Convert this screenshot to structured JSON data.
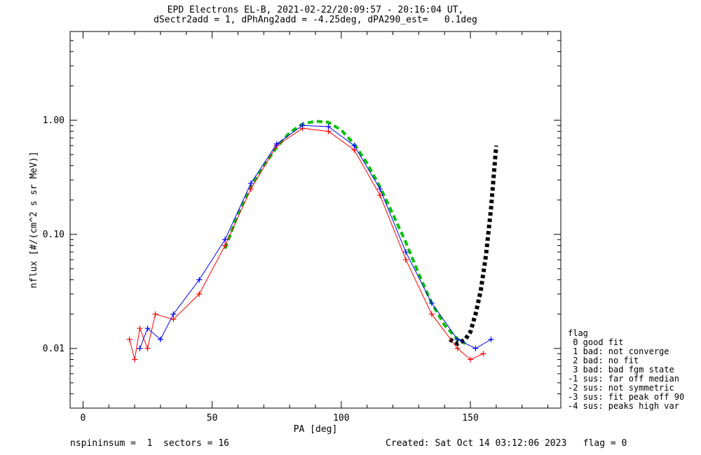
{
  "chart_data": {
    "type": "line",
    "title": "EPD Electrons EL-B, 2021-02-22/20:09:57 - 20:16:04 UT,",
    "subtitle": "dSectr2add = 1, dPhAng2add = -4.25deg, dPA290_est=   0.1deg",
    "xlabel": "PA [deg]",
    "ylabel": "nflux [#/(cm^2 s sr MeV)]",
    "xlim": [
      -5,
      185
    ],
    "ylim": [
      0.003,
      6.0
    ],
    "yscale": "log",
    "xticks": [
      0,
      50,
      100,
      150
    ],
    "xtick_labels": [
      "0",
      "50",
      "100",
      "150"
    ],
    "yticks": [
      0.01,
      0.1,
      1.0
    ],
    "ytick_labels": [
      "0.01",
      "0.10",
      "1.00"
    ],
    "series": [
      {
        "color": "#00c000",
        "style": "dashed",
        "x": [
          55,
          60,
          65,
          70,
          75,
          80,
          85,
          90,
          95,
          100,
          105,
          110,
          115,
          120,
          125,
          130,
          135,
          140,
          145,
          148
        ],
        "y": [
          0.075,
          0.15,
          0.26,
          0.4,
          0.58,
          0.78,
          0.93,
          0.98,
          0.96,
          0.82,
          0.62,
          0.42,
          0.26,
          0.15,
          0.085,
          0.045,
          0.025,
          0.016,
          0.012,
          0.011
        ]
      },
      {
        "color": "#000000",
        "style": "dotted-thick",
        "x": [
          142,
          145,
          148,
          150,
          152,
          154,
          156,
          158,
          160
        ],
        "y": [
          0.012,
          0.011,
          0.012,
          0.014,
          0.02,
          0.032,
          0.065,
          0.17,
          0.6
        ]
      },
      {
        "color": "#ff0000",
        "style": "plus-markers",
        "x": [
          18,
          20,
          22,
          25,
          28,
          35,
          45,
          55,
          65,
          75,
          85,
          95,
          105,
          115,
          125,
          135,
          145,
          150,
          155
        ],
        "y": [
          0.012,
          0.008,
          0.015,
          0.01,
          0.02,
          0.018,
          0.03,
          0.08,
          0.25,
          0.6,
          0.85,
          0.8,
          0.55,
          0.22,
          0.06,
          0.02,
          0.01,
          0.008,
          0.009
        ]
      },
      {
        "color": "#0000ff",
        "style": "plus-markers",
        "x": [
          22,
          25,
          30,
          35,
          45,
          55,
          65,
          75,
          85,
          95,
          105,
          115,
          125,
          135,
          145,
          152,
          158
        ],
        "y": [
          0.01,
          0.015,
          0.012,
          0.02,
          0.04,
          0.09,
          0.28,
          0.62,
          0.9,
          0.88,
          0.6,
          0.25,
          0.07,
          0.025,
          0.012,
          0.01,
          0.012
        ]
      }
    ]
  },
  "legend": {
    "items": [
      "flag",
      " 0 good fit",
      " 1 bad: not converge",
      " 2 bad: no fit",
      " 3 bad: bad fgm state",
      "-1 sus: far off median",
      "-2 sus: not symmetric",
      "-3 sus: fit peak off 90",
      "-4 sus: peaks high var"
    ]
  },
  "footer": {
    "left": "nspininsum =  1  sectors = 16",
    "right": "Created: Sat Oct 14 03:12:06 2023   flag = 0"
  },
  "colors": {
    "red": "#ff0000",
    "blue": "#0000ff",
    "green": "#00c000",
    "black": "#000000"
  }
}
